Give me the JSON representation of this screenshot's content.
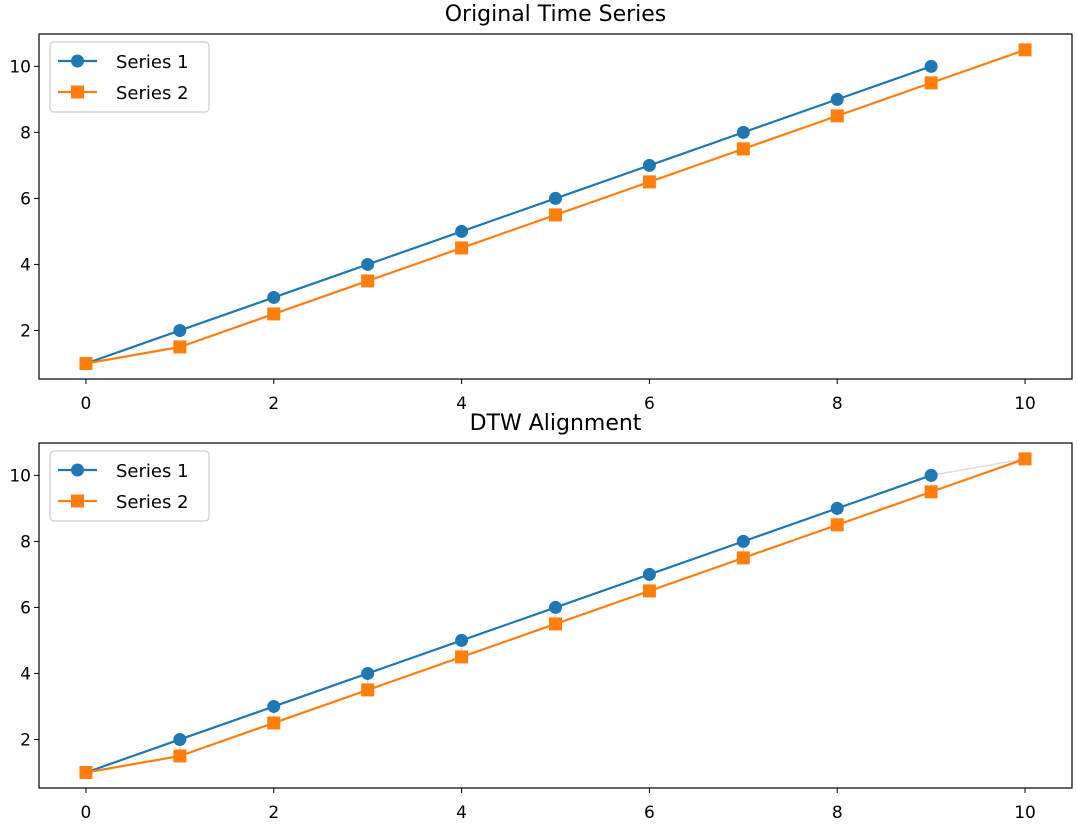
{
  "chart_data": [
    {
      "type": "line",
      "title": "Original Time Series",
      "xlabel": "",
      "ylabel": "",
      "xlim": [
        -0.5,
        10.5
      ],
      "ylim": [
        0.53,
        10.98
      ],
      "xticks": [
        0,
        2,
        4,
        6,
        8,
        10
      ],
      "yticks": [
        2,
        4,
        6,
        8,
        10
      ],
      "grid": false,
      "legend_position": "top-left",
      "series": [
        {
          "name": "Series 1",
          "color": "#1f77b4",
          "marker": "circle",
          "x": [
            0,
            1,
            2,
            3,
            4,
            5,
            6,
            7,
            8,
            9
          ],
          "y": [
            1,
            2,
            3,
            4,
            5,
            6,
            7,
            8,
            9,
            10
          ]
        },
        {
          "name": "Series 2",
          "color": "#ff7f0e",
          "marker": "square",
          "x": [
            0,
            1,
            2,
            3,
            4,
            5,
            6,
            7,
            8,
            9,
            10
          ],
          "y": [
            1,
            1.5,
            2.5,
            3.5,
            4.5,
            5.5,
            6.5,
            7.5,
            8.5,
            9.5,
            10.5
          ]
        }
      ]
    },
    {
      "type": "line",
      "title": "DTW Alignment",
      "xlabel": "",
      "ylabel": "",
      "xlim": [
        -0.5,
        10.5
      ],
      "ylim": [
        0.53,
        10.98
      ],
      "xticks": [
        0,
        2,
        4,
        6,
        8,
        10
      ],
      "yticks": [
        2,
        4,
        6,
        8,
        10
      ],
      "grid": false,
      "legend_position": "top-left",
      "series": [
        {
          "name": "Series 1",
          "color": "#1f77b4",
          "marker": "circle",
          "x": [
            0,
            1,
            2,
            3,
            4,
            5,
            6,
            7,
            8,
            9
          ],
          "y": [
            1,
            2,
            3,
            4,
            5,
            6,
            7,
            8,
            9,
            10
          ]
        },
        {
          "name": "Series 2",
          "color": "#ff7f0e",
          "marker": "square",
          "x": [
            0,
            1,
            2,
            3,
            4,
            5,
            6,
            7,
            8,
            9,
            10
          ],
          "y": [
            1,
            1.5,
            2.5,
            3.5,
            4.5,
            5.5,
            6.5,
            7.5,
            8.5,
            9.5,
            10.5
          ]
        }
      ],
      "alignment": {
        "color": "#d3d3d3",
        "pairs": [
          [
            0,
            0
          ],
          [
            1,
            1
          ],
          [
            2,
            2
          ],
          [
            3,
            3
          ],
          [
            4,
            4
          ],
          [
            5,
            5
          ],
          [
            6,
            6
          ],
          [
            7,
            7
          ],
          [
            8,
            8
          ],
          [
            9,
            9
          ],
          [
            9,
            10
          ]
        ]
      }
    }
  ]
}
